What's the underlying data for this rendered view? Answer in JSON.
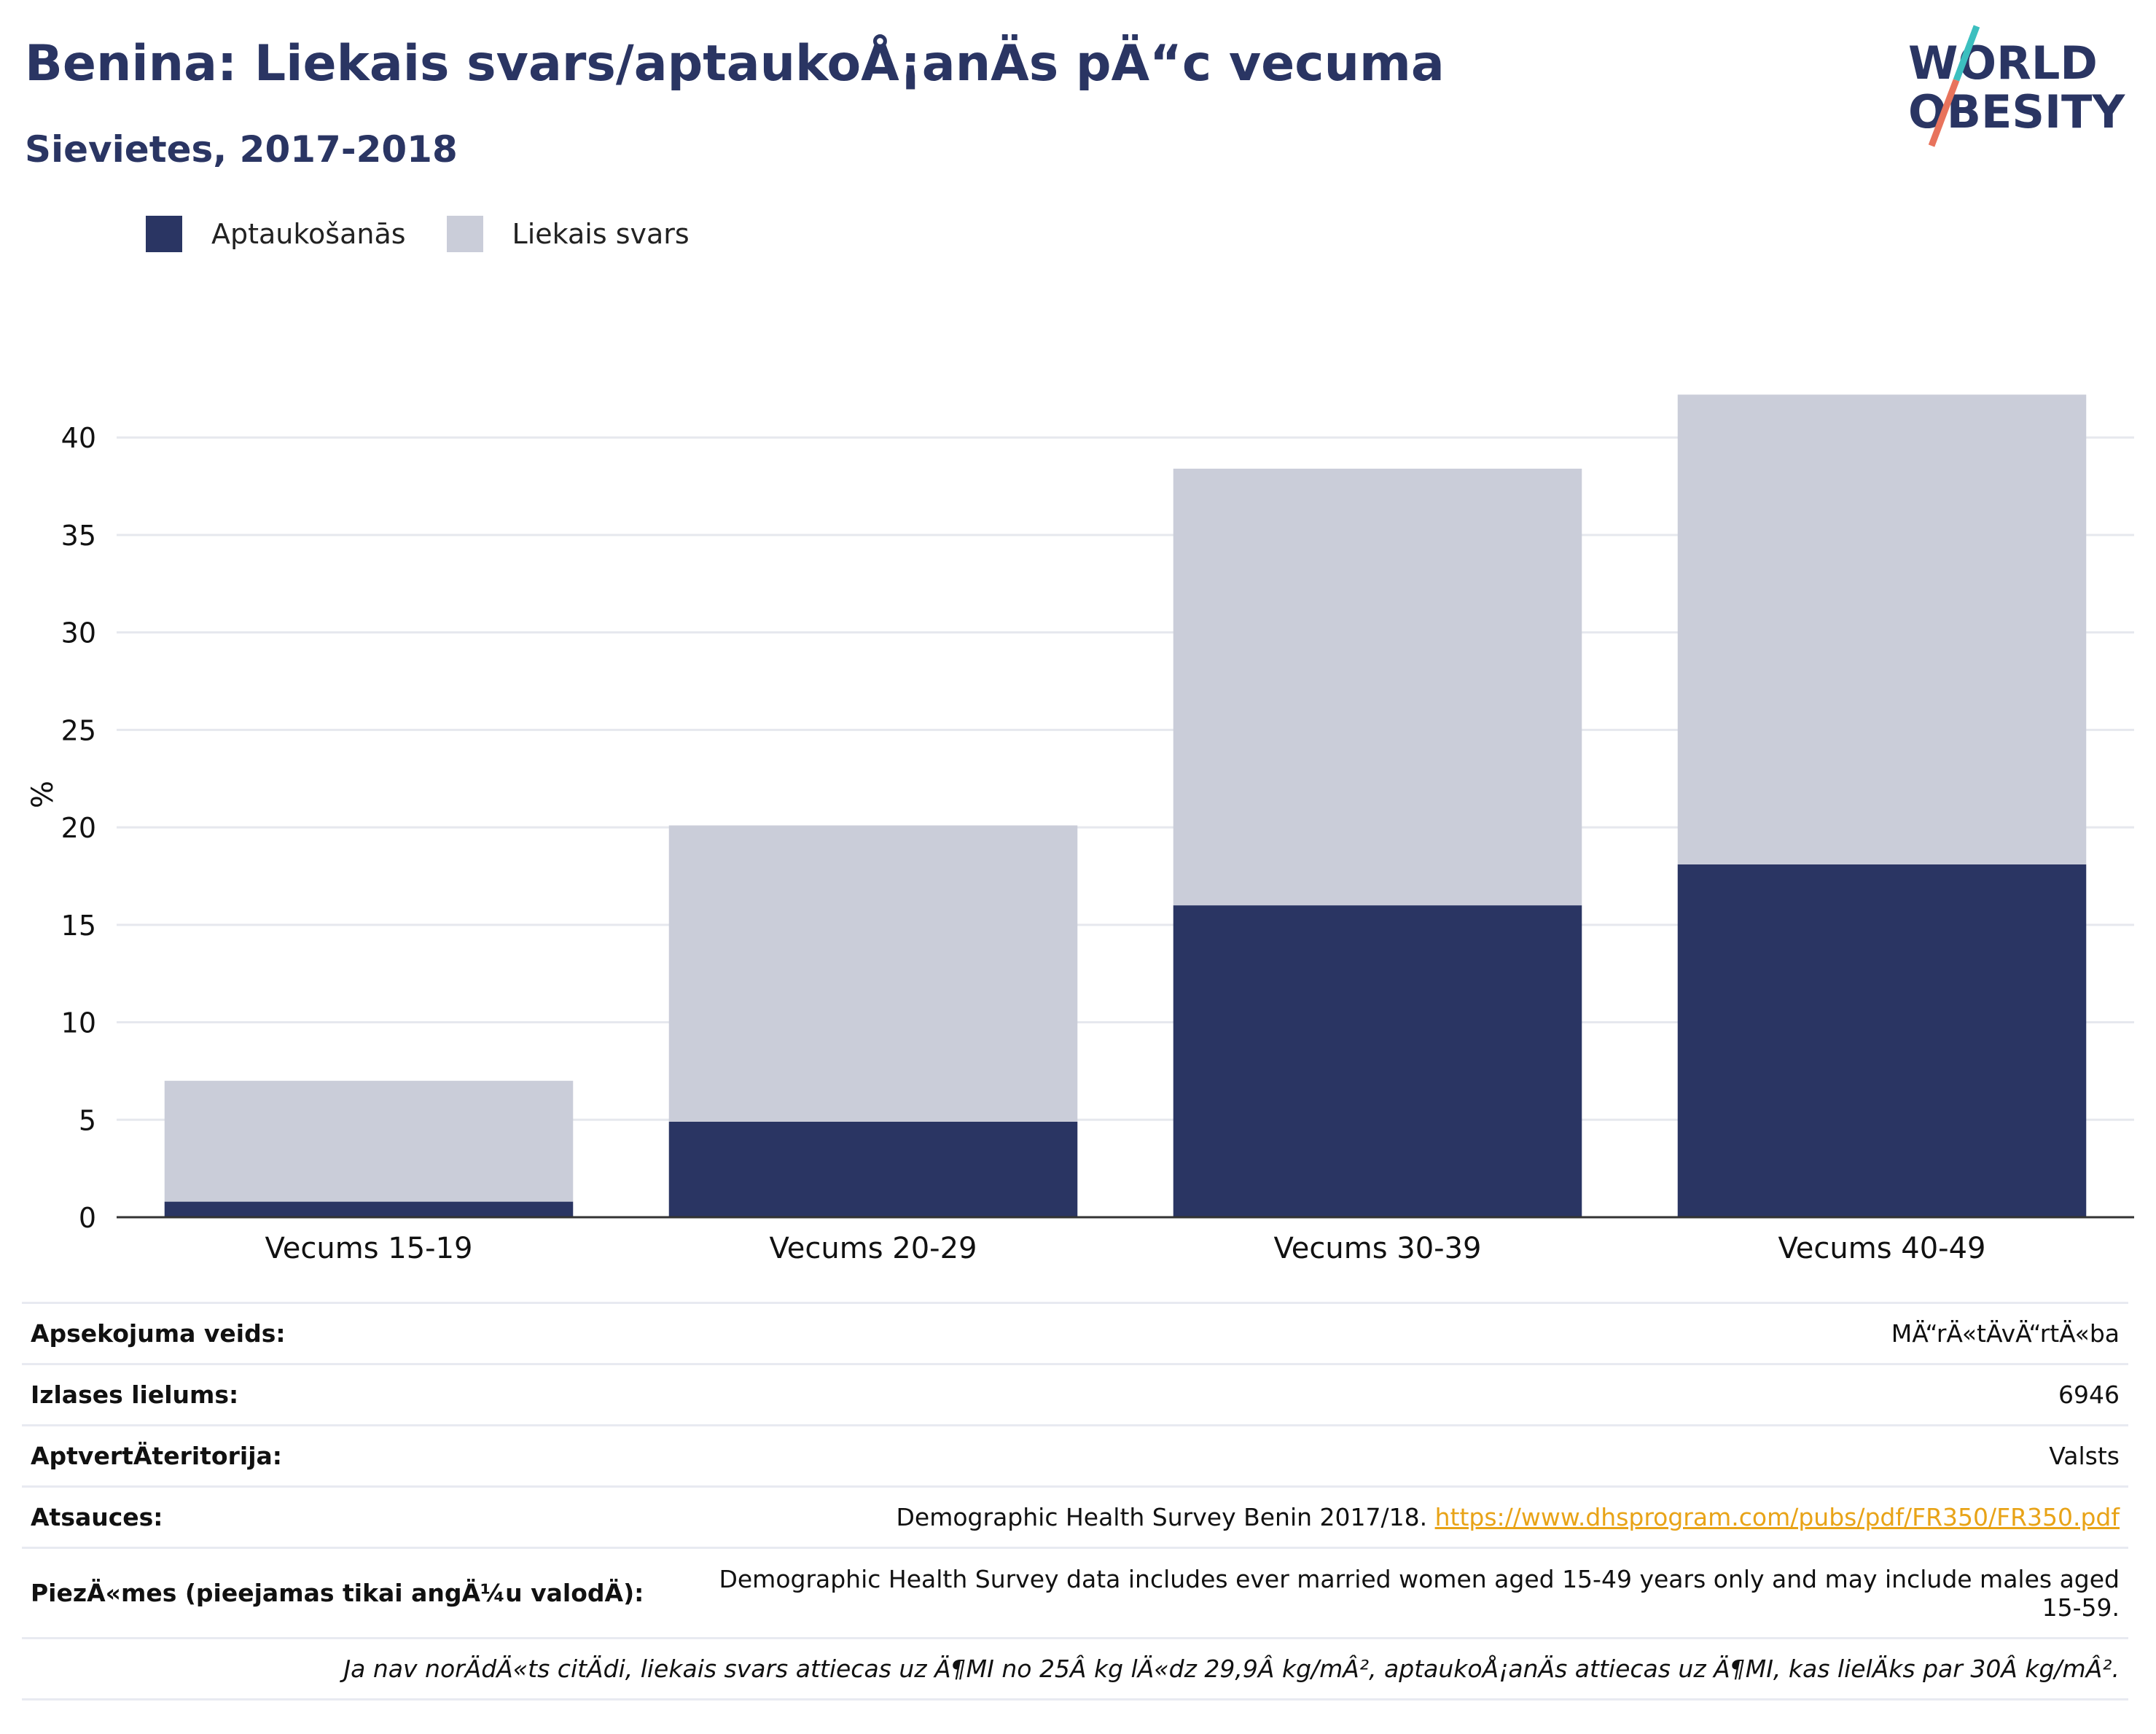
{
  "header": {
    "title": "Benina: Liekais svars/aptaukoÅ¡anÄs pÄ“c vecuma",
    "subtitle": "Sievietes, 2017-2018"
  },
  "logo": {
    "line1": "WORLD",
    "line2": "OBESITY",
    "accent_teal": "#3cbfbf",
    "accent_coral": "#e8735c"
  },
  "colors": {
    "obesity": "#2a3563",
    "overweight": "#cacdd9",
    "text_dark": "#2a3563",
    "link": "#e8a317"
  },
  "legend": {
    "obesity_label": "Aptaukošanās",
    "overweight_label": "Liekais svars"
  },
  "chart_data": {
    "type": "bar",
    "stacked": true,
    "categories": [
      "Vecums 15-19",
      "Vecums 20-29",
      "Vecums 30-39",
      "Vecums 40-49"
    ],
    "series": [
      {
        "name": "Aptaukošanās",
        "values": [
          0.8,
          4.9,
          16.0,
          18.1
        ]
      },
      {
        "name": "Liekais svars",
        "values": [
          6.2,
          15.2,
          22.4,
          24.1
        ]
      }
    ],
    "ylabel": "%",
    "ylim": [
      0,
      43
    ],
    "yticks": [
      0,
      5,
      10,
      15,
      20,
      25,
      30,
      35,
      40
    ],
    "grid": true,
    "legend_position": "top-left"
  },
  "info": {
    "survey_type_label": "Apsekojuma veids:",
    "survey_type_value": "MÄ“rÄ«tÄvÄ“rtÄ«ba",
    "sample_size_label": "Izlases lielums:",
    "sample_size_value": "6946",
    "area_label": "AptvertÄteritorija:",
    "area_value": "Valsts",
    "references_label": "Atsauces:",
    "references_text": "Demographic Health Survey Benin 2017/18.",
    "references_link": "https://www.dhsprogram.com/pubs/pdf/FR350/FR350.pdf",
    "notes_label": "PiezÄ«mes (pieejamas tikai angÄ¼u valodÄ):",
    "notes_value": "Demographic Health Survey data includes ever married women aged 15-49 years only and may include males aged 15-59.",
    "footnote": "Ja nav norÄdÄ«ts citÄdi, liekais svars attiecas uz Ä¶MI no 25Â kg lÄ«dz 29,9Â kg/mÂ², aptaukoÅ¡anÄs attiecas uz Ä¶MI, kas lielÄks par 30Â kg/mÂ²."
  }
}
